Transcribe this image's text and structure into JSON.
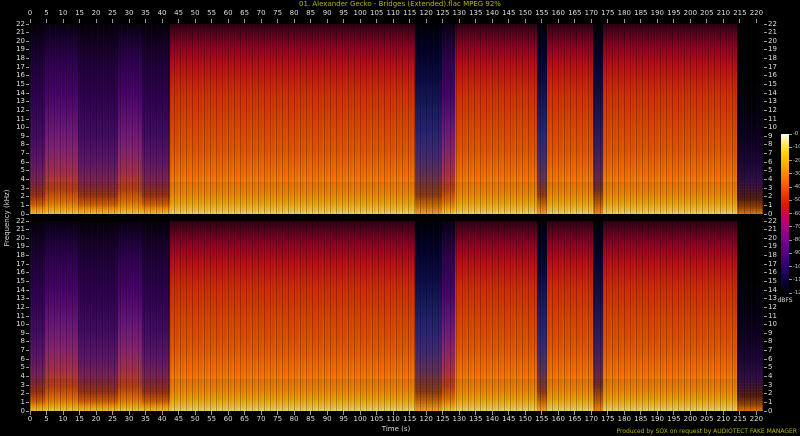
{
  "window": {
    "title": "01. Alexander Gecko - Bridges (Extended).flac MPEG 92%",
    "credit": "Produced by SOX on request by AUDIOTECT FAKE MANAGER"
  },
  "chart_data": {
    "type": "heatmap",
    "subtype": "audio-spectrogram",
    "title": "01. Alexander Gecko - Bridges (Extended).flac MPEG 92%",
    "xlabel": "Time (s)",
    "ylabel": "Frequency (kHz)",
    "duration_s": 222,
    "x_ticks": {
      "start": 0,
      "end": 220,
      "step": 5
    },
    "freq_ticks_khz": {
      "start": 0,
      "end": 22,
      "step": 1
    },
    "channels": [
      "left",
      "right"
    ],
    "colorbar": {
      "label": "dBFS",
      "max_db": 0,
      "min_db": -120,
      "tick_step_db": 10
    },
    "palette_low_to_high": [
      "#000000",
      "#1a0040",
      "#3a0070",
      "#6a1478",
      "#a02060",
      "#d03020",
      "#f06000",
      "#ff9800",
      "#ffc800",
      "#fff0a0",
      "#ffffff"
    ],
    "segments": [
      {
        "start_s": 0.0,
        "end_s": 4.5,
        "level": "quiet1"
      },
      {
        "start_s": 4.5,
        "end_s": 14.5,
        "level": "quiet2"
      },
      {
        "start_s": 14.5,
        "end_s": 26.7,
        "level": "quiet1"
      },
      {
        "start_s": 26.7,
        "end_s": 34.0,
        "level": "quiet2"
      },
      {
        "start_s": 34.0,
        "end_s": 42.4,
        "level": "quiet1"
      },
      {
        "start_s": 42.4,
        "end_s": 116.7,
        "level": "loud"
      },
      {
        "start_s": 116.7,
        "end_s": 124.8,
        "level": "break"
      },
      {
        "start_s": 124.8,
        "end_s": 128.8,
        "level": "quiet2"
      },
      {
        "start_s": 128.8,
        "end_s": 153.6,
        "level": "loud"
      },
      {
        "start_s": 153.6,
        "end_s": 156.7,
        "level": "break"
      },
      {
        "start_s": 156.7,
        "end_s": 170.6,
        "level": "loud"
      },
      {
        "start_s": 170.6,
        "end_s": 173.6,
        "level": "gap"
      },
      {
        "start_s": 173.6,
        "end_s": 214.2,
        "level": "loud"
      },
      {
        "start_s": 214.2,
        "end_s": 222.0,
        "level": "fade"
      }
    ]
  }
}
